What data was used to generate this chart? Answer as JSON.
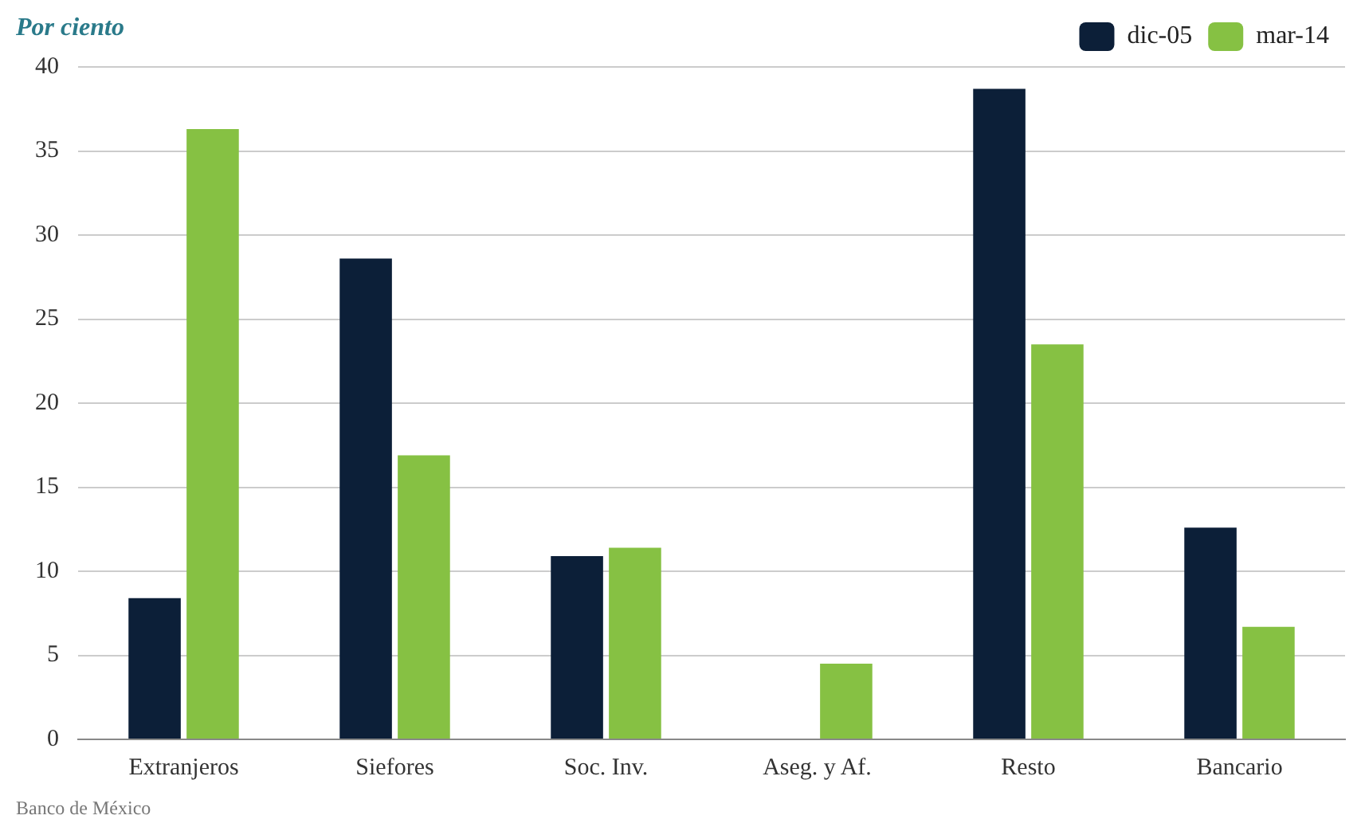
{
  "chart_data": {
    "type": "bar",
    "ylabel": "Por ciento",
    "categories": [
      "Extranjeros",
      "Siefores",
      "Soc. Inv.",
      "Aseg. y Af.",
      "Resto",
      "Bancario"
    ],
    "series": [
      {
        "name": "dic-05",
        "color": "#0c1f38",
        "values": [
          8.4,
          28.6,
          10.9,
          0,
          38.7,
          12.6
        ]
      },
      {
        "name": "mar-14",
        "color": "#86c143",
        "values": [
          36.3,
          16.9,
          11.4,
          4.5,
          23.5,
          6.7
        ]
      }
    ],
    "ylim": [
      0,
      40
    ],
    "yticks": [
      0,
      5,
      10,
      15,
      20,
      25,
      30,
      35,
      40
    ],
    "grid": "y",
    "legend": "top right",
    "annotations": [
      "Banco de México"
    ]
  }
}
